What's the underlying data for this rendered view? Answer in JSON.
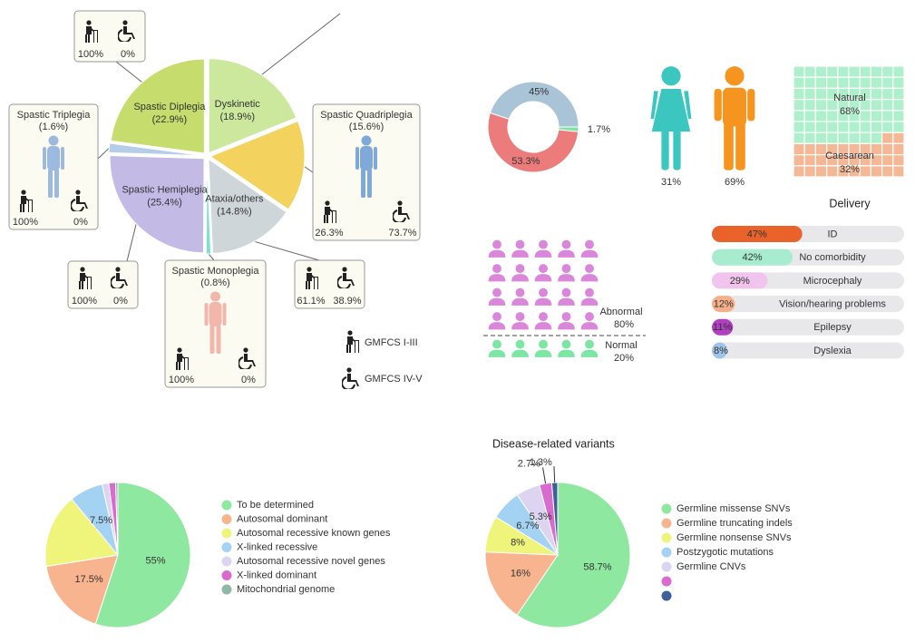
{
  "chart_data": [
    {
      "type": "pie",
      "categories": [
        "Dyskinetic",
        "Spastic Quadriplegia",
        "Ataxia/others",
        "Spastic Monoplegia",
        "Spastic Hemiplegia",
        "Spastic Triplegia",
        "Spastic Diplegia"
      ],
      "values": [
        18.9,
        15.6,
        14.8,
        0.8,
        25.4,
        1.6,
        22.9
      ],
      "value_labels": [
        "(18.9%)",
        "(15.6%)",
        "(14.8%)",
        "(0.8%)",
        "(25.4%)",
        "(1.6%)",
        "(22.9%)"
      ],
      "colors": [
        "#cbe89c",
        "#f4d25e",
        "#cfd6d9",
        "#7fe0d6",
        "#c3bae6",
        "#b5cde8",
        "#c6dc6c"
      ],
      "series": [
        {
          "name": "GMFCS I-III",
          "values": [
            null,
            26.3,
            61.1,
            100,
            100,
            100,
            100
          ],
          "value_labels": [
            null,
            "26.3%",
            "61.1%",
            "100%",
            "100%",
            "100%",
            "100%"
          ]
        },
        {
          "name": "GMFCS IV-V",
          "values": [
            null,
            73.7,
            38.9,
            0,
            0,
            0,
            0
          ],
          "value_labels": [
            null,
            "73.7%",
            "38.9%",
            "0%",
            "0%",
            "0%",
            "0%"
          ]
        }
      ]
    },
    {
      "type": "donut",
      "values": [
        45,
        1.7,
        53.3
      ],
      "value_labels": [
        "45%",
        "1.7%",
        "53.3%"
      ],
      "colors": [
        "#a9c4d6",
        "#7fe3a4",
        "#ec7c7c"
      ]
    },
    {
      "type": "pictogram-sex",
      "values": [
        31,
        69
      ],
      "value_labels": [
        "31%",
        "69%"
      ],
      "colors": [
        "#3cc6c0",
        "#f5951f"
      ]
    },
    {
      "type": "waffle",
      "title": "Delivery",
      "categories": [
        "Natural",
        "Caesarean"
      ],
      "values": [
        68,
        32
      ],
      "value_labels": [
        "68%",
        "32%"
      ],
      "colors": [
        "#aef0cc",
        "#f5b896"
      ]
    },
    {
      "type": "pictogram",
      "categories": [
        "Abnormal",
        "Normal"
      ],
      "values": [
        80,
        20
      ],
      "value_labels": [
        "80%",
        "20%"
      ],
      "colors": [
        "#da86da",
        "#7ee6a4"
      ]
    },
    {
      "type": "bar",
      "categories": [
        "ID",
        "No comorbidity",
        "Microcephaly",
        "Vision/hearing problems",
        "Epilepsy",
        "Dyslexia"
      ],
      "values": [
        47,
        42,
        29,
        12,
        11,
        8
      ],
      "value_labels": [
        "47%",
        "42%",
        "29%",
        "12%",
        "11%",
        "8%"
      ],
      "colors": [
        "#e8622a",
        "#a8ecd0",
        "#f0c4ec",
        "#f5b08a",
        "#b040c0",
        "#9ec4e8"
      ],
      "xlim": [
        0,
        100
      ]
    },
    {
      "type": "pie",
      "categories": [
        "To be determined",
        "Autosomal dominant",
        "Autosomal recessive known genes",
        "X-linked recessive",
        "Autosomal recessive novel genes",
        "X-linked dominant",
        "Mitochondrial genome"
      ],
      "values": [
        55,
        17.5,
        16.5,
        7.5,
        1.5,
        1.5,
        0.5
      ],
      "value_labels": [
        "55%",
        "17.5%",
        null,
        "7.5%",
        null,
        null,
        null
      ],
      "colors": [
        "#8ee8a0",
        "#f7b48e",
        "#eef57a",
        "#a4d2f2",
        "#dcd4f0",
        "#d86ad0",
        "#8fb8a8"
      ]
    },
    {
      "type": "pie",
      "title": "Disease-related variants",
      "categories": [
        "Germline missense SNVs",
        "Germline truncating indels",
        "Germline nonsense SNVs",
        "Postzygotic mutations",
        "Germline CNVs",
        null,
        null
      ],
      "values": [
        58.7,
        16,
        8,
        6.7,
        5.3,
        2.7,
        1.3
      ],
      "value_labels": [
        "58.7%",
        "16%",
        "8%",
        "6.7%",
        "5.3%",
        "2.7%",
        "1.3%"
      ],
      "colors": [
        "#8ee8a0",
        "#f7b48e",
        "#eef57a",
        "#a4d2f2",
        "#dcd4f0",
        "#d86ad0",
        "#3d5f9a"
      ]
    }
  ]
}
